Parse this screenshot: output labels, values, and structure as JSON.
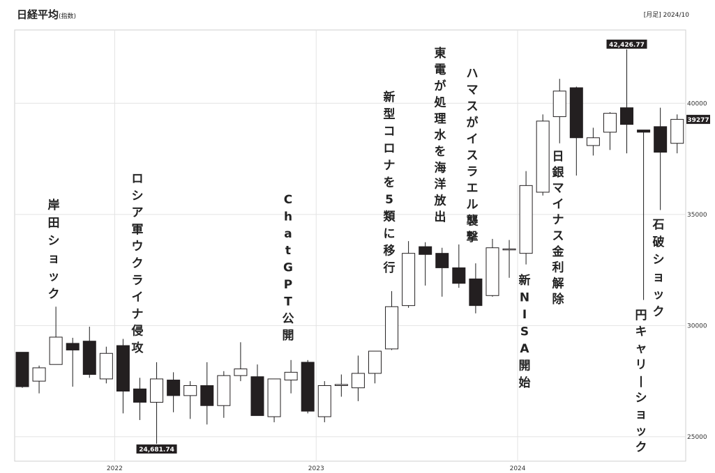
{
  "header": {
    "title": "日経平均",
    "unit": "(指数)",
    "period": "[月足] 2024/10"
  },
  "chart_data": {
    "type": "candlestick",
    "title": "日経平均",
    "ylim": [
      23900,
      43300
    ],
    "grid": true,
    "yticks": [
      25000,
      30000,
      35000,
      40000
    ],
    "ytick_labels": [
      "25000",
      "30000",
      "35000",
      "40000"
    ],
    "xticks": [
      {
        "index": 5.5,
        "label": "2022"
      },
      {
        "index": 17.5,
        "label": "2023"
      },
      {
        "index": 29.5,
        "label": "2024"
      }
    ],
    "candles": [
      {
        "o": 28800,
        "h": 28800,
        "l": 27200,
        "c": 27250
      },
      {
        "o": 27500,
        "h": 28200,
        "l": 26950,
        "c": 28100
      },
      {
        "o": 28250,
        "h": 30850,
        "l": 28250,
        "c": 29480
      },
      {
        "o": 29200,
        "h": 29450,
        "l": 27250,
        "c": 28900
      },
      {
        "o": 29300,
        "h": 29950,
        "l": 27650,
        "c": 27800
      },
      {
        "o": 27600,
        "h": 29050,
        "l": 27400,
        "c": 28750
      },
      {
        "o": 29100,
        "h": 29400,
        "l": 26050,
        "c": 27050
      },
      {
        "o": 27150,
        "h": 27650,
        "l": 25750,
        "c": 26550
      },
      {
        "o": 26550,
        "h": 28350,
        "l": 24681.74,
        "c": 27600
      },
      {
        "o": 27550,
        "h": 27900,
        "l": 26100,
        "c": 26850
      },
      {
        "o": 26850,
        "h": 27500,
        "l": 25800,
        "c": 27300
      },
      {
        "o": 27300,
        "h": 28350,
        "l": 25550,
        "c": 26400
      },
      {
        "o": 26400,
        "h": 27950,
        "l": 25850,
        "c": 27750
      },
      {
        "o": 27750,
        "h": 29250,
        "l": 27500,
        "c": 28050
      },
      {
        "o": 27700,
        "h": 28250,
        "l": 26050,
        "c": 25950
      },
      {
        "o": 25900,
        "h": 27600,
        "l": 25650,
        "c": 27600
      },
      {
        "o": 27550,
        "h": 28450,
        "l": 26950,
        "c": 27900
      },
      {
        "o": 28350,
        "h": 28450,
        "l": 26050,
        "c": 26150
      },
      {
        "o": 25900,
        "h": 27500,
        "l": 25650,
        "c": 27300
      },
      {
        "o": 27300,
        "h": 27800,
        "l": 26800,
        "c": 27350
      },
      {
        "o": 27200,
        "h": 28650,
        "l": 26600,
        "c": 27850
      },
      {
        "o": 27850,
        "h": 28850,
        "l": 27400,
        "c": 28850
      },
      {
        "o": 28950,
        "h": 31550,
        "l": 28900,
        "c": 30850
      },
      {
        "o": 30900,
        "h": 33800,
        "l": 30800,
        "c": 33250
      },
      {
        "o": 33550,
        "h": 33750,
        "l": 31800,
        "c": 33200
      },
      {
        "o": 33250,
        "h": 33500,
        "l": 31300,
        "c": 32600
      },
      {
        "o": 32600,
        "h": 33650,
        "l": 31700,
        "c": 31900
      },
      {
        "o": 32100,
        "h": 32800,
        "l": 30550,
        "c": 30900
      },
      {
        "o": 31350,
        "h": 33900,
        "l": 31300,
        "c": 33500
      },
      {
        "o": 33450,
        "h": 33850,
        "l": 32150,
        "c": 33450
      },
      {
        "o": 33250,
        "h": 36950,
        "l": 32750,
        "c": 36300
      },
      {
        "o": 36000,
        "h": 39500,
        "l": 35850,
        "c": 39200
      },
      {
        "o": 39400,
        "h": 41100,
        "l": 38200,
        "c": 40550
      },
      {
        "o": 40700,
        "h": 40750,
        "l": 36750,
        "c": 38450
      },
      {
        "o": 38100,
        "h": 38900,
        "l": 37650,
        "c": 38450
      },
      {
        "o": 38700,
        "h": 39600,
        "l": 37900,
        "c": 39550
      },
      {
        "o": 39800,
        "h": 42426.77,
        "l": 37750,
        "c": 39050
      },
      {
        "o": 38800,
        "h": 38750,
        "l": 31150,
        "c": 38700
      },
      {
        "o": 38950,
        "h": 39800,
        "l": 35200,
        "c": 37800
      },
      {
        "o": 38200,
        "h": 39500,
        "l": 37750,
        "c": 39277
      }
    ],
    "callouts": [
      {
        "index": 8,
        "text": "24,681.74"
      },
      {
        "index": 36,
        "text": "42,426.77"
      },
      {
        "index": 39,
        "text": "39277"
      }
    ],
    "annotations": [
      {
        "text": "岸田ショック"
      },
      {
        "text": "ロシア軍ウクライナ侵攻"
      },
      {
        "text": "ChatGPT公開"
      },
      {
        "text": "新型コロナを5類に移行"
      },
      {
        "text": "東電が処理水を海洋放出"
      },
      {
        "text": "ハマスがイスラエル襲撃"
      },
      {
        "text": "新NISA開始"
      },
      {
        "text": "日銀マイナス金利解除"
      },
      {
        "text": "円キャリーショック"
      },
      {
        "text": "石破ショック"
      }
    ]
  }
}
